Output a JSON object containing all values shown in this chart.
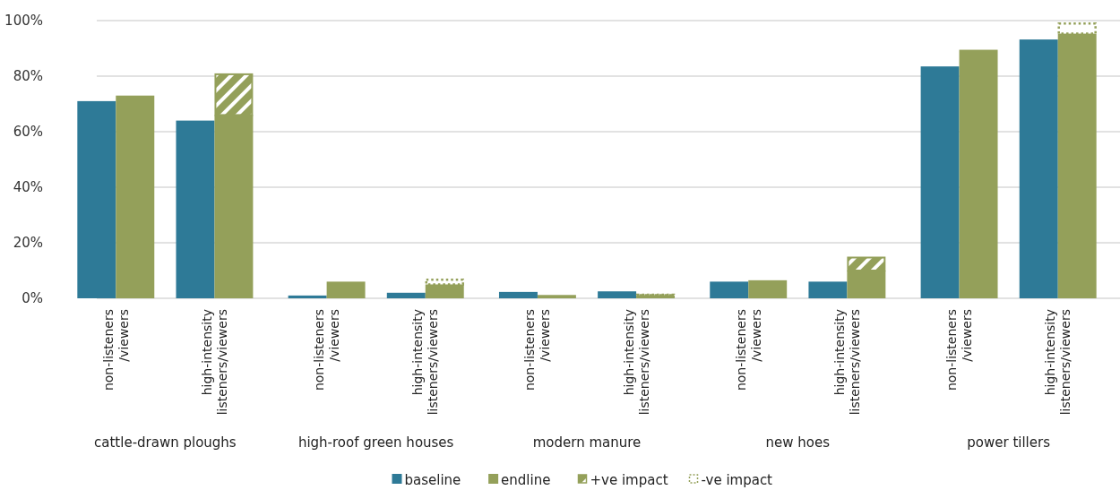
{
  "chart_data": {
    "type": "bar",
    "categories": [
      "non-listeners /viewers",
      "high-intensity listeners/viewers",
      "non-listeners /viewers",
      "high-intensity listeners/viewers",
      "non-listeners /viewers",
      "high-intensity listeners/viewers",
      "non-listeners /viewers",
      "high-intensity listeners/viewers",
      "non-listeners /viewers",
      "high-intensity listeners/viewers"
    ],
    "series": [
      {
        "name": "baseline",
        "color": "#2e7a97",
        "values": [
          71,
          64,
          1,
          2,
          2.3,
          2.5,
          6,
          6,
          83.5,
          93.2
        ]
      },
      {
        "name": "endline",
        "color": "#94a05a",
        "values": [
          73,
          66,
          6,
          5,
          1.2,
          1.1,
          6.5,
          10,
          89.5,
          95.3
        ]
      },
      {
        "name": "+ve impact",
        "color": "#94a05a",
        "base": [
          null,
          66,
          null,
          null,
          null,
          null,
          null,
          10,
          null,
          null
        ],
        "values": [
          null,
          15,
          null,
          null,
          null,
          null,
          null,
          5,
          null,
          null
        ]
      },
      {
        "name": "-ve impact",
        "color": "#94a05a",
        "line_style": "dotted",
        "base": [
          null,
          null,
          null,
          5,
          null,
          1.1,
          null,
          null,
          null,
          95.3
        ],
        "values": [
          null,
          null,
          null,
          2,
          null,
          0.5,
          null,
          null,
          null,
          4
        ]
      }
    ],
    "annotations": [
      "cattle-drawn ploughs",
      "high-roof green houses",
      "modern manure",
      "new hoes",
      "power tillers"
    ],
    "ylim": [
      0,
      100
    ],
    "yticks": [
      {
        "value": 0,
        "label": "0%"
      },
      {
        "value": 20,
        "label": "20%"
      },
      {
        "value": 40,
        "label": "40%"
      },
      {
        "value": 60,
        "label": "60%"
      },
      {
        "value": 80,
        "label": "80%"
      },
      {
        "value": 100,
        "label": "100%"
      }
    ],
    "grid": "y",
    "legend": "bottom"
  }
}
